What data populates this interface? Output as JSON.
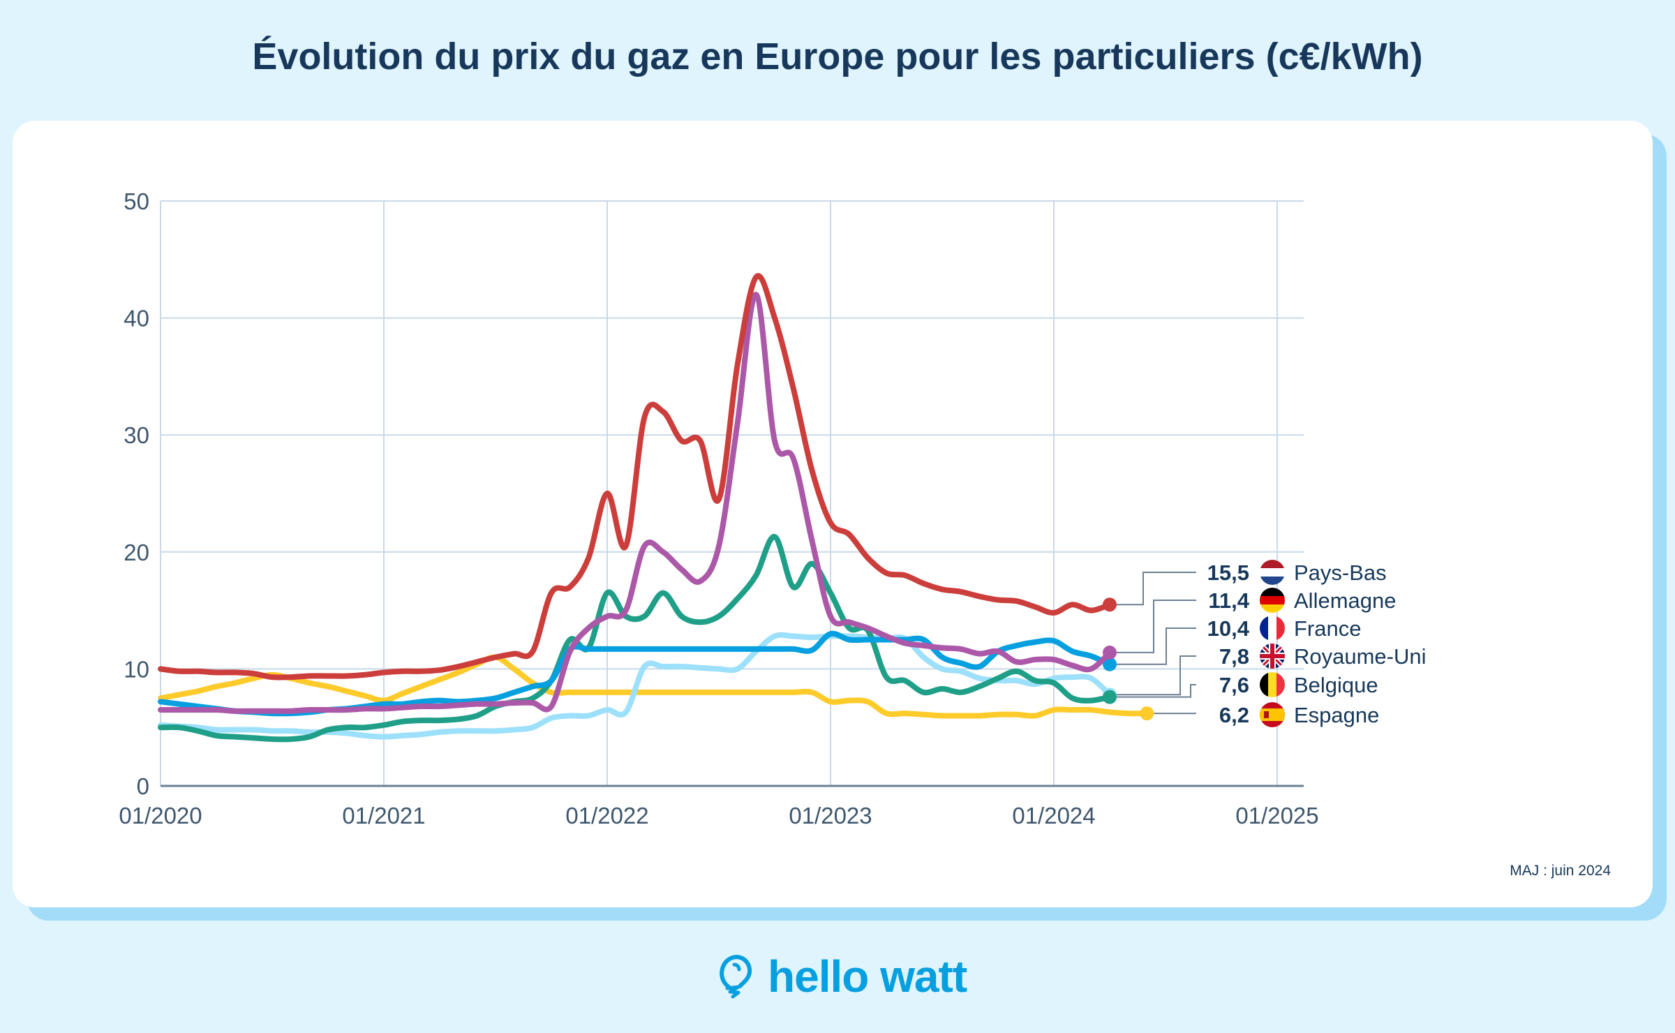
{
  "title": "Évolution du prix du gaz en Europe pour les particuliers (c€/kWh)",
  "update_note": "MAJ : juin 2024",
  "logo": {
    "text": "hello watt",
    "icon": "lightbulb-icon",
    "color": "#069fe0"
  },
  "chart_data": {
    "type": "line",
    "title": "Évolution du prix du gaz en Europe pour les particuliers (c€/kWh)",
    "xlabel": "",
    "ylabel": "c€/kWh",
    "x_start": "01/2020",
    "x_step": "month",
    "xlim": [
      "01/2020",
      "01/2025"
    ],
    "ylim": [
      0,
      50
    ],
    "y_ticks": [
      "0",
      "10",
      "20",
      "30",
      "40",
      "50"
    ],
    "x_ticks": [
      "01/2020",
      "01/2021",
      "01/2022",
      "01/2023",
      "01/2024",
      "01/2025"
    ],
    "grid": true,
    "legend_placement": "right (end labels)",
    "series": [
      {
        "name": "Pays-Bas",
        "flag": "nl",
        "last_value": "15,5",
        "color": "#cc3e3b",
        "values": [
          10,
          9.8,
          9.8,
          9.7,
          9.7,
          9.6,
          9.3,
          9.3,
          9.4,
          9.4,
          9.4,
          9.5,
          9.7,
          9.8,
          9.8,
          9.9,
          10.2,
          10.6,
          11,
          11.3,
          11.5,
          16.5,
          17,
          19.5,
          25,
          20.5,
          31.5,
          32,
          29.5,
          29.5,
          24.5,
          36,
          43.5,
          40,
          34,
          27,
          22.5,
          21.5,
          19.5,
          18.2,
          18,
          17.3,
          16.8,
          16.6,
          16.2,
          15.9,
          15.8,
          15.3,
          14.8,
          15.5,
          15,
          15.5
        ]
      },
      {
        "name": "Allemagne",
        "flag": "de",
        "last_value": "11,4",
        "color": "#ac58a8",
        "values": [
          6.5,
          6.5,
          6.5,
          6.5,
          6.4,
          6.4,
          6.4,
          6.4,
          6.5,
          6.5,
          6.5,
          6.6,
          6.6,
          6.7,
          6.8,
          6.8,
          6.9,
          7.0,
          7.0,
          7.1,
          7.1,
          6.8,
          11.5,
          13.5,
          14.5,
          15,
          20.5,
          20,
          18.5,
          17.5,
          20.5,
          31,
          42,
          29.5,
          28,
          21,
          14.5,
          14,
          13.5,
          12.8,
          12.2,
          12,
          11.8,
          11.7,
          11.3,
          11.5,
          10.6,
          10.8,
          10.8,
          10.3,
          10.0,
          11.4
        ]
      },
      {
        "name": "France",
        "flag": "fr",
        "last_value": "10,4",
        "color": "#069fe0",
        "values": [
          7.2,
          7.0,
          6.8,
          6.6,
          6.4,
          6.3,
          6.2,
          6.2,
          6.3,
          6.5,
          6.6,
          6.8,
          7.0,
          7.0,
          7.2,
          7.3,
          7.2,
          7.3,
          7.5,
          8.0,
          8.5,
          9.0,
          11.7,
          11.7,
          11.7,
          11.7,
          11.7,
          11.7,
          11.7,
          11.7,
          11.7,
          11.7,
          11.7,
          11.7,
          11.7,
          11.6,
          13,
          12.5,
          12.5,
          12.5,
          12.5,
          12.5,
          11,
          10.5,
          10.2,
          11.5,
          12,
          12.3,
          12.4,
          11.5,
          11.1,
          10.4
        ]
      },
      {
        "name": "Royaume-Uni",
        "flag": "uk",
        "last_value": "7,8",
        "color": "#9de0fb",
        "values": [
          5.2,
          5.1,
          5.0,
          4.8,
          4.8,
          4.8,
          4.7,
          4.7,
          4.6,
          4.6,
          4.5,
          4.3,
          4.2,
          4.3,
          4.4,
          4.6,
          4.7,
          4.7,
          4.7,
          4.8,
          5.0,
          5.8,
          6.0,
          6.0,
          6.5,
          6.3,
          10.2,
          10.2,
          10.2,
          10.1,
          10.0,
          10.0,
          11.5,
          12.8,
          12.8,
          12.7,
          12.8,
          12.8,
          12.7,
          12.6,
          12.6,
          11.0,
          10.0,
          9.8,
          9.2,
          9.0,
          9.0,
          8.7,
          9.2,
          9.3,
          9.2,
          7.8
        ]
      },
      {
        "name": "Belgique",
        "flag": "be",
        "last_value": "7,6",
        "color": "#1f9f88",
        "values": [
          5.0,
          5.0,
          4.7,
          4.3,
          4.2,
          4.1,
          4.0,
          4.0,
          4.2,
          4.8,
          5.0,
          5.0,
          5.2,
          5.5,
          5.6,
          5.6,
          5.7,
          6.0,
          6.8,
          7.2,
          7.5,
          9,
          12.5,
          11.8,
          16.5,
          14.5,
          14.5,
          16.5,
          14.5,
          14,
          14.5,
          16,
          18,
          21.3,
          17,
          19,
          16.5,
          13.5,
          13.3,
          9.3,
          9.0,
          8,
          8.3,
          8,
          8.5,
          9.2,
          9.8,
          9,
          8.8,
          7.5,
          7.3,
          7.6
        ]
      },
      {
        "name": "Espagne",
        "flag": "es",
        "last_value": "6,2",
        "color": "#fecb2b",
        "values": [
          7.5,
          7.8,
          8.1,
          8.5,
          8.8,
          9.2,
          9.5,
          9.2,
          8.8,
          8.5,
          8.1,
          7.7,
          7.3,
          7.9,
          8.5,
          9.1,
          9.7,
          10.4,
          11.0,
          10.0,
          8.8,
          8.0,
          8.0,
          8.0,
          8,
          8,
          8,
          8,
          8,
          8,
          8,
          8,
          8,
          8,
          8,
          8,
          7.2,
          7.3,
          7.2,
          6.2,
          6.2,
          6.1,
          6.0,
          6.0,
          6.0,
          6.1,
          6.1,
          6.0,
          6.5,
          6.5,
          6.5,
          6.3,
          6.2,
          6.2
        ]
      }
    ]
  }
}
